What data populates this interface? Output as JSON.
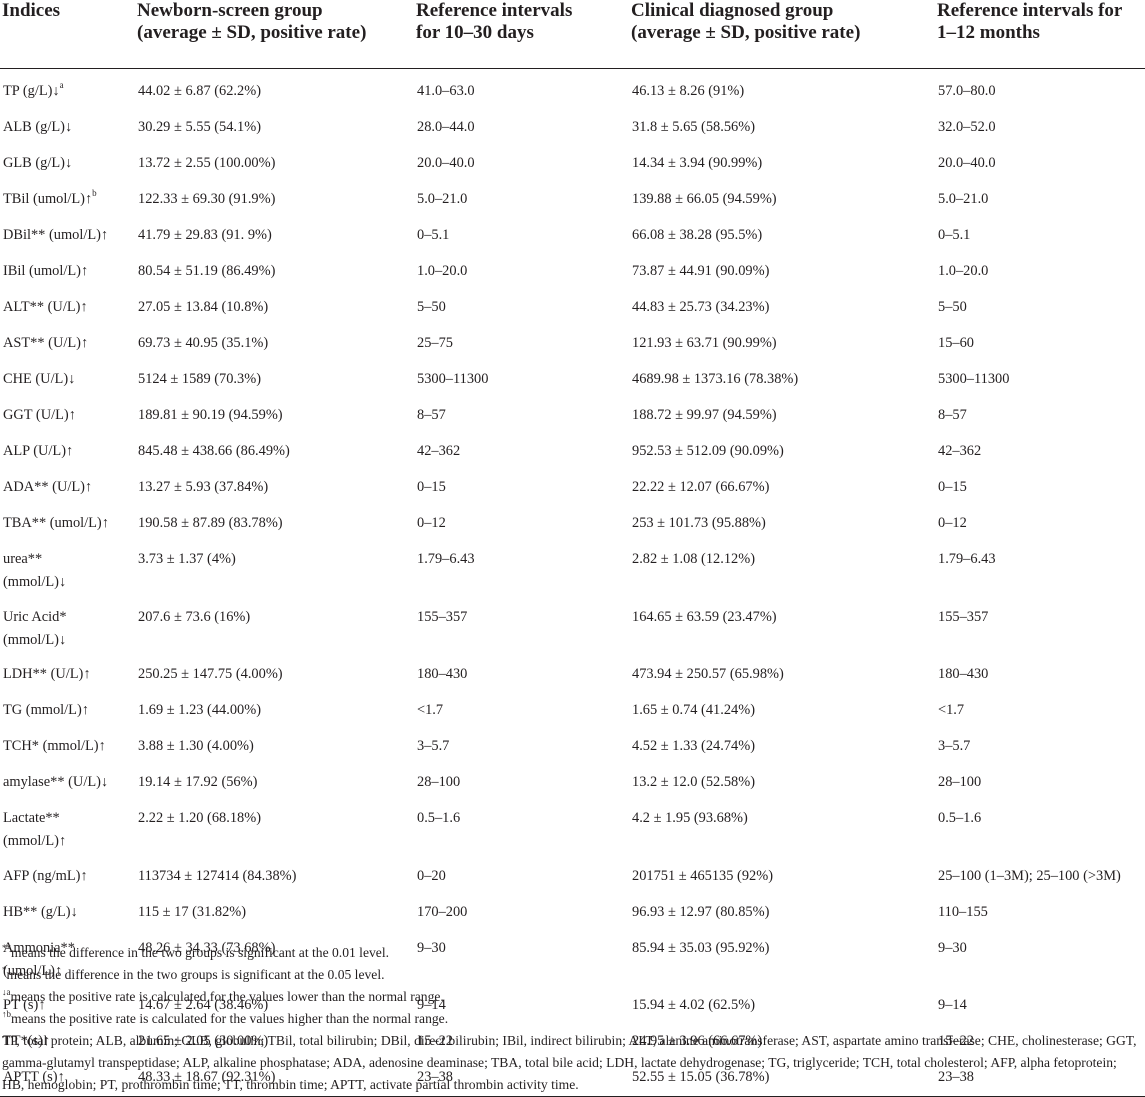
{
  "headers": [
    "Indices",
    "Newborn-screen group\n(average ± SD, positive rate)",
    "Reference intervals\nfor 10–30 days",
    "Clinical diagnosed group\n(average ± SD, positive rate)",
    "Reference intervals for\n1–12 months"
  ],
  "rows": [
    {
      "index": "TP (g/L)↓",
      "sup": "a",
      "newborn": "44.02 ± 6.87 (62.2%)",
      "ref_newborn": "41.0–63.0",
      "clinical": "46.13 ± 8.26 (91%)",
      "ref_clinical": "57.0–80.0"
    },
    {
      "index": "ALB (g/L)↓",
      "newborn": "30.29 ± 5.55 (54.1%)",
      "ref_newborn": "28.0–44.0",
      "clinical": "31.8 ± 5.65 (58.56%)",
      "ref_clinical": "32.0–52.0"
    },
    {
      "index": "GLB (g/L)↓",
      "newborn": "13.72 ± 2.55 (100.00%)",
      "ref_newborn": "20.0–40.0",
      "clinical": "14.34 ± 3.94 (90.99%)",
      "ref_clinical": "20.0–40.0"
    },
    {
      "index": "TBil (umol/L)↑",
      "sup": "b",
      "newborn": "122.33 ± 69.30 (91.9%)",
      "ref_newborn": "5.0–21.0",
      "clinical": "139.88 ± 66.05 (94.59%)",
      "ref_clinical": "5.0–21.0"
    },
    {
      "index": "DBil** (umol/L)↑",
      "newborn": "41.79 ± 29.83 (91. 9%)",
      "ref_newborn": "0–5.1",
      "clinical": "66.08 ± 38.28 (95.5%)",
      "ref_clinical": "0–5.1"
    },
    {
      "index": "IBil (umol/L)↑",
      "newborn": "80.54 ± 51.19 (86.49%)",
      "ref_newborn": "1.0–20.0",
      "clinical": "73.87 ± 44.91 (90.09%)",
      "ref_clinical": "1.0–20.0"
    },
    {
      "index": "ALT** (U/L)↑",
      "newborn": "27.05 ± 13.84 (10.8%)",
      "ref_newborn": "5–50",
      "clinical": "44.83 ± 25.73 (34.23%)",
      "ref_clinical": "5–50"
    },
    {
      "index": "AST** (U/L)↑",
      "newborn": "69.73 ± 40.95 (35.1%)",
      "ref_newborn": "25–75",
      "clinical": "121.93 ± 63.71 (90.99%)",
      "ref_clinical": "15–60"
    },
    {
      "index": "CHE (U/L)↓",
      "newborn": "5124 ± 1589 (70.3%)",
      "ref_newborn": "5300–11300",
      "clinical": "4689.98 ± 1373.16 (78.38%)",
      "ref_clinical": "5300–11300"
    },
    {
      "index": "GGT (U/L)↑",
      "newborn": "189.81 ± 90.19 (94.59%)",
      "ref_newborn": "8–57",
      "clinical": "188.72 ± 99.97 (94.59%)",
      "ref_clinical": "8–57"
    },
    {
      "index": "ALP (U/L)↑",
      "newborn": "845.48 ± 438.66 (86.49%)",
      "ref_newborn": "42–362",
      "clinical": "952.53 ± 512.09 (90.09%)",
      "ref_clinical": "42–362"
    },
    {
      "index": "ADA** (U/L)↑",
      "newborn": "13.27 ± 5.93 (37.84%)",
      "ref_newborn": "0–15",
      "clinical": "22.22 ± 12.07 (66.67%)",
      "ref_clinical": "0–15"
    },
    {
      "index": "TBA** (umol/L)↑",
      "newborn": "190.58 ± 87.89 (83.78%)",
      "ref_newborn": "0–12",
      "clinical": "253 ± 101.73 (95.88%)",
      "ref_clinical": "0–12"
    },
    {
      "index": "urea**\n(mmol/L)↓",
      "newborn": "3.73 ± 1.37 (4%)",
      "ref_newborn": "1.79–6.43",
      "clinical": "2.82 ± 1.08 (12.12%)",
      "ref_clinical": "1.79–6.43"
    },
    {
      "index": "Uric Acid*\n(mmol/L)↓",
      "newborn": "207.6 ± 73.6 (16%)",
      "ref_newborn": "155–357",
      "clinical": "164.65 ± 63.59 (23.47%)",
      "ref_clinical": "155–357"
    },
    {
      "index": "LDH** (U/L)↑",
      "newborn": "250.25 ± 147.75 (4.00%)",
      "ref_newborn": "180–430",
      "clinical": "473.94 ± 250.57 (65.98%)",
      "ref_clinical": "180–430"
    },
    {
      "index": "TG (mmol/L)↑",
      "newborn": "1.69 ± 1.23 (44.00%)",
      "ref_newborn": "<1.7",
      "clinical": "1.65 ± 0.74 (41.24%)",
      "ref_clinical": "<1.7"
    },
    {
      "index": "TCH* (mmol/L)↑",
      "newborn": "3.88 ± 1.30 (4.00%)",
      "ref_newborn": "3–5.7",
      "clinical": "4.52 ± 1.33 (24.74%)",
      "ref_clinical": "3–5.7"
    },
    {
      "index": "amylase** (U/L)↓",
      "newborn": "19.14 ± 17.92 (56%)",
      "ref_newborn": "28–100",
      "clinical": "13.2 ± 12.0 (52.58%)",
      "ref_clinical": "28–100"
    },
    {
      "index": "Lactate**\n(mmol/L)↑",
      "newborn": "2.22 ± 1.20 (68.18%)",
      "ref_newborn": "0.5–1.6",
      "clinical": "4.2 ± 1.95 (93.68%)",
      "ref_clinical": "0.5–1.6"
    },
    {
      "index": "AFP (ng/mL)↑",
      "newborn": "113734 ± 127414 (84.38%)",
      "ref_newborn": "0–20",
      "clinical": "201751 ± 465135 (92%)",
      "ref_clinical": "25–100 (1–3M); 25–100 (>3M)"
    },
    {
      "index": "HB** (g/L)↓",
      "newborn": "115 ± 17 (31.82%)",
      "ref_newborn": "170–200",
      "clinical": "96.93 ± 12.97 (80.85%)",
      "ref_clinical": "110–155"
    },
    {
      "index": "Ammonia**\n(umol/L)↑",
      "newborn": "48.26 ± 34.33 (73.68%)",
      "ref_newborn": "9–30",
      "clinical": "85.94 ± 35.03 (95.92%)",
      "ref_clinical": "9–30"
    },
    {
      "index": "PT (s)↑",
      "newborn": "14.67 ± 2.64 (38.46%)",
      "ref_newborn": "9–14",
      "clinical": "15.94 ± 4.02 (62.5%)",
      "ref_clinical": "9–14"
    },
    {
      "index": "TT*(s)↑",
      "newborn": "21.65 ± 2.05 (30.00%)",
      "ref_newborn": "15–22",
      "clinical": "24.95 ± 3.96 (66.67%)",
      "ref_clinical": "15–22"
    },
    {
      "index": "APTT (s)↑",
      "newborn": "48.33 ± 18.67 (92.31%)",
      "ref_newborn": "23–38",
      "clinical": "52.55 ± 15.05 (36.78%)",
      "ref_clinical": "23–38"
    }
  ],
  "notes": [
    "**means the difference in the two groups is significant at the 0.01 level.",
    "*means the difference in the two groups is significant at the 0.05 level.",
    "↓ameans the positive rate is calculated for the values lower than the normal range.",
    "↑bmeans the positive rate is calculated for the values higher than the normal range.",
    "TP, total protein; ALB, albumin; GLB, globulin; TBil, total bilirubin; DBil, direct bilirubin; IBil, indirect bilirubin; ALT, alanine aminotransferase; AST, aspartate amino transferase; CHE, cholinesterase; GGT, gamma-glutamyl transpeptidase; ALP, alkaline phosphatase; ADA, adenosine deaminase; TBA, total bile acid; LDH, lactate dehydrogenase; TG, triglyceride; TCH, total cholesterol; AFP, alpha fetoprotein; HB, hemoglobin; PT, prothrombin time; TT, thrombin time; APTT, activate partial thrombin activity time."
  ]
}
